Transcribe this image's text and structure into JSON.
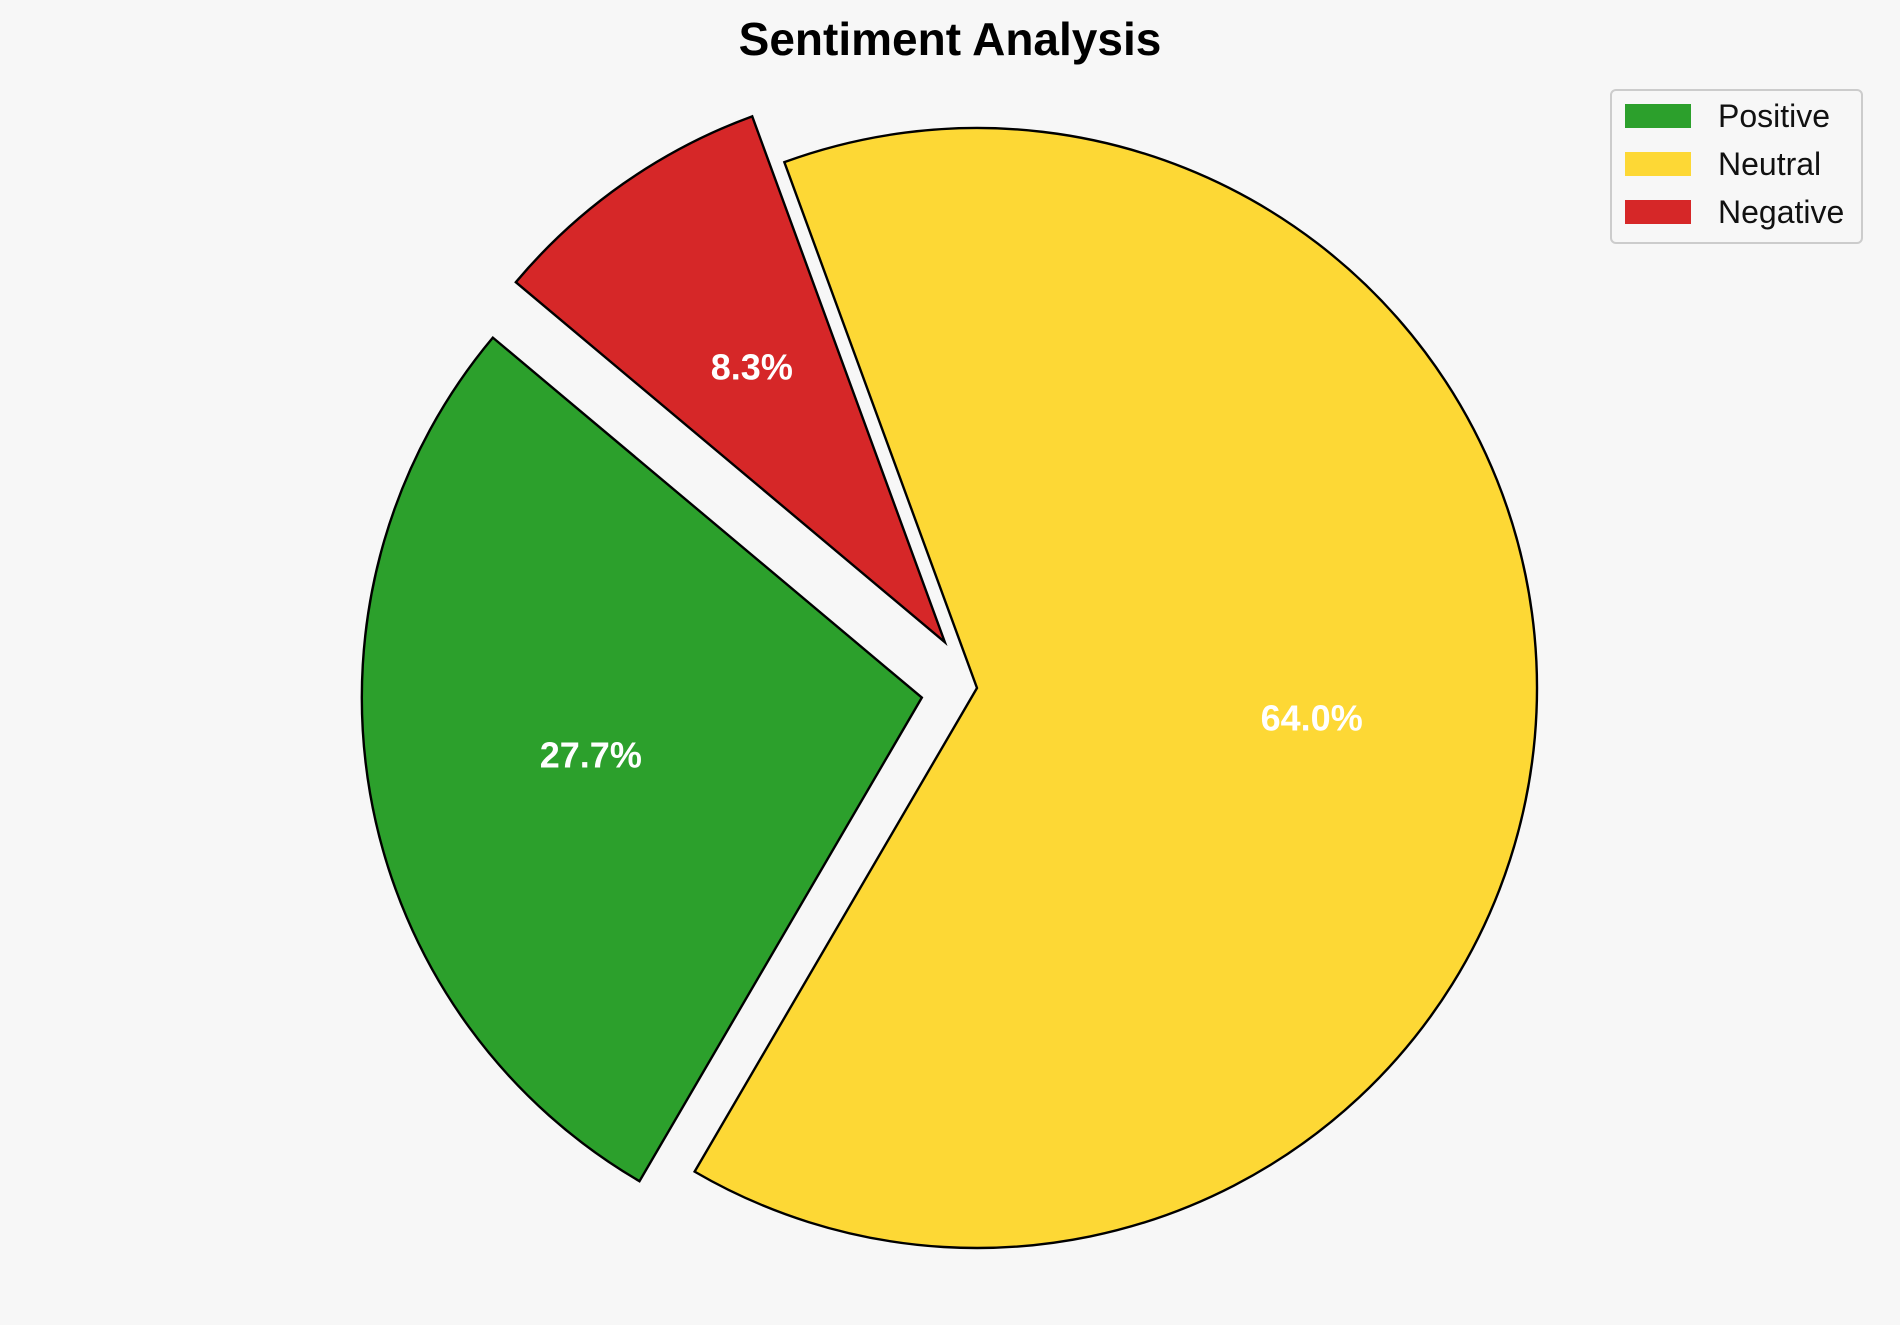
{
  "chart_data": {
    "type": "pie",
    "title": "Sentiment Analysis",
    "categories": [
      "Positive",
      "Neutral",
      "Negative"
    ],
    "values": [
      27.7,
      64.0,
      8.3
    ],
    "labels": [
      "27.7%",
      "64.0%",
      "8.3%"
    ],
    "colors": [
      "#2ca02c",
      "#fdd835",
      "#d62728"
    ],
    "exploded": [
      true,
      false,
      true
    ],
    "legend_position": "top-right",
    "edge_color": "#000000"
  }
}
